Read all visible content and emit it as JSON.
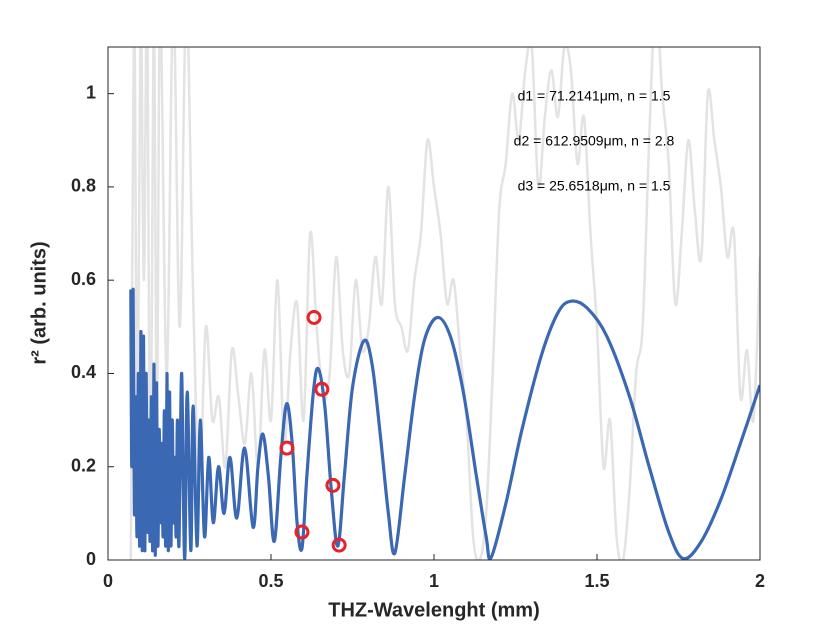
{
  "chart_data": {
    "type": "line",
    "xlabel": "THZ-Wavelenght (mm)",
    "ylabel": "r² (arb. units)",
    "xlim": [
      0,
      2
    ],
    "ylim": [
      0,
      1.1
    ],
    "xticks": [
      0,
      0.5,
      1,
      1.5,
      2
    ],
    "yticks": [
      0,
      0.2,
      0.4,
      0.6,
      0.8,
      1
    ],
    "annotations": [
      "d1 = 71.2141μm, n = 1.5",
      "d2 = 612.9509μm, n = 2.8",
      "d3 = 25.6518μm, n = 1.5"
    ],
    "series": [
      {
        "mode": "line",
        "color": "#e3e3e3",
        "x": [
          0.07,
          0.08,
          0.09,
          0.1,
          0.11,
          0.12,
          0.13,
          0.14,
          0.15,
          0.16,
          0.18,
          0.2,
          0.22,
          0.24,
          0.26,
          0.28,
          0.3,
          0.32,
          0.34,
          0.36,
          0.38,
          0.4,
          0.42,
          0.44,
          0.46,
          0.48,
          0.5,
          0.52,
          0.54,
          0.56,
          0.58,
          0.6,
          0.62,
          0.64,
          0.66,
          0.68,
          0.7,
          0.72,
          0.74,
          0.76,
          0.78,
          0.8,
          0.82,
          0.84,
          0.86,
          0.88,
          0.9,
          0.92,
          0.94,
          0.96,
          0.98,
          1.0,
          1.02,
          1.04,
          1.06,
          1.08,
          1.1,
          1.12,
          1.14,
          1.16,
          1.18,
          1.2,
          1.22,
          1.24,
          1.26,
          1.28,
          1.3,
          1.32,
          1.34,
          1.36,
          1.38,
          1.4,
          1.42,
          1.44,
          1.46,
          1.48,
          1.5,
          1.52,
          1.54,
          1.56,
          1.58,
          1.6,
          1.62,
          1.64,
          1.66,
          1.68,
          1.7,
          1.72,
          1.74,
          1.76,
          1.78,
          1.8,
          1.82,
          1.84,
          1.86,
          1.88,
          1.9,
          1.92,
          1.94,
          1.96,
          1.98,
          2.0
        ],
        "values": [
          0.0,
          1.2,
          0.2,
          1.2,
          0.6,
          1.2,
          0.05,
          1.2,
          0.3,
          1.2,
          0.4,
          1.2,
          0.5,
          1.2,
          0.6,
          0.15,
          0.5,
          0.3,
          0.35,
          0.2,
          0.45,
          0.35,
          0.25,
          0.4,
          0.2,
          0.45,
          0.3,
          0.6,
          0.25,
          0.45,
          0.55,
          0.3,
          0.7,
          0.5,
          0.35,
          0.4,
          0.65,
          0.45,
          0.4,
          0.6,
          0.45,
          0.5,
          0.65,
          0.55,
          0.8,
          0.55,
          0.5,
          0.45,
          0.6,
          0.7,
          0.9,
          0.8,
          0.7,
          0.55,
          0.6,
          0.45,
          0.3,
          0.05,
          0.0,
          0.1,
          0.4,
          0.75,
          0.85,
          1.0,
          0.9,
          1.05,
          1.1,
          0.8,
          0.95,
          1.05,
          0.95,
          1.1,
          1.05,
          0.85,
          0.95,
          0.7,
          0.5,
          0.2,
          0.3,
          0.05,
          0.0,
          0.15,
          0.4,
          0.5,
          0.9,
          1.2,
          1.0,
          0.85,
          0.55,
          0.7,
          0.9,
          0.75,
          0.65,
          1.0,
          0.9,
          0.8,
          0.65,
          0.7,
          0.35,
          0.45,
          0.3,
          0.65
        ]
      },
      {
        "mode": "line",
        "color": "#3a68b3",
        "x": [
          0.07,
          0.073,
          0.077,
          0.081,
          0.085,
          0.089,
          0.093,
          0.097,
          0.101,
          0.105,
          0.109,
          0.113,
          0.117,
          0.121,
          0.125,
          0.129,
          0.133,
          0.137,
          0.141,
          0.145,
          0.149,
          0.153,
          0.157,
          0.161,
          0.165,
          0.169,
          0.173,
          0.177,
          0.181,
          0.185,
          0.189,
          0.193,
          0.197,
          0.201,
          0.205,
          0.209,
          0.213,
          0.217,
          0.221,
          0.226,
          0.231,
          0.236,
          0.243,
          0.254,
          0.261,
          0.273,
          0.283,
          0.296,
          0.309,
          0.323,
          0.339,
          0.356,
          0.374,
          0.395,
          0.419,
          0.445,
          0.46,
          0.475,
          0.492,
          0.51,
          0.53,
          0.548,
          0.565,
          0.58,
          0.595,
          0.61,
          0.63,
          0.645,
          0.665,
          0.685,
          0.705,
          0.725,
          0.75,
          0.785,
          0.81,
          0.835,
          0.86,
          0.88,
          0.91,
          0.94,
          0.97,
          1.01,
          1.05,
          1.09,
          1.13,
          1.16,
          1.175,
          1.22,
          1.27,
          1.33,
          1.38,
          1.42,
          1.47,
          1.53,
          1.6,
          1.66,
          1.72,
          1.765,
          1.82,
          1.88,
          1.94,
          2.0
        ],
        "values": [
          0.58,
          0.2,
          0.58,
          0.1,
          0.35,
          0.05,
          0.4,
          0.03,
          0.49,
          0.02,
          0.48,
          0.02,
          0.4,
          0.06,
          0.3,
          0.04,
          0.35,
          0.02,
          0.42,
          0.01,
          0.38,
          0.03,
          0.28,
          0.08,
          0.25,
          0.05,
          0.32,
          0.03,
          0.4,
          0.02,
          0.36,
          0.03,
          0.3,
          0.08,
          0.22,
          0.05,
          0.3,
          0.03,
          0.2,
          0.4,
          0.15,
          0.01,
          0.36,
          0.02,
          0.33,
          0.03,
          0.3,
          0.05,
          0.22,
          0.08,
          0.2,
          0.1,
          0.22,
          0.09,
          0.24,
          0.07,
          0.2,
          0.27,
          0.18,
          0.04,
          0.22,
          0.335,
          0.25,
          0.08,
          0.025,
          0.18,
          0.36,
          0.41,
          0.33,
          0.15,
          0.03,
          0.18,
          0.37,
          0.47,
          0.42,
          0.27,
          0.1,
          0.015,
          0.18,
          0.35,
          0.47,
          0.52,
          0.48,
          0.36,
          0.18,
          0.05,
          0.005,
          0.12,
          0.28,
          0.44,
          0.53,
          0.555,
          0.54,
          0.48,
          0.35,
          0.2,
          0.06,
          0.003,
          0.04,
          0.13,
          0.25,
          0.375
        ]
      },
      {
        "mode": "marker",
        "color": "#e8212a",
        "x": [
          0.549,
          0.595,
          0.632,
          0.656,
          0.69,
          0.709
        ],
        "values": [
          0.24,
          0.06,
          0.52,
          0.366,
          0.16,
          0.032
        ]
      }
    ]
  }
}
